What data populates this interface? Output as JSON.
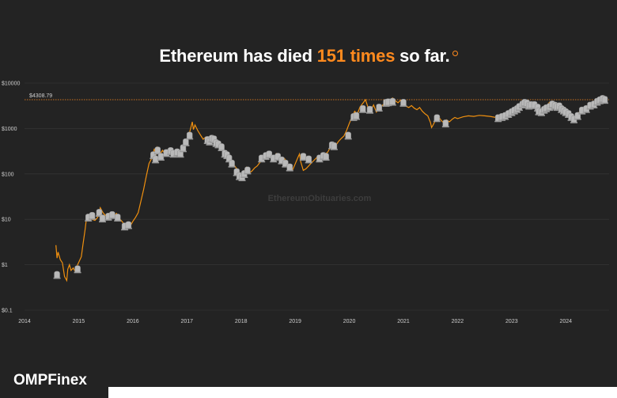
{
  "headline": {
    "prefix": "Ethereum has died ",
    "highlight": "151 times",
    "suffix": " so far.",
    "info_icon": "info-circle-icon"
  },
  "brand": {
    "name": "OMPFinex"
  },
  "watermark": "EthereumObituaries.com",
  "colors": {
    "background": "#232323",
    "accent": "#ff8a1e",
    "line": "#f0900f",
    "gridline": "#3a3a3a",
    "tombstone": "#b9b9b9"
  },
  "chart_data": {
    "type": "line",
    "title": "Ethereum has died 151 times so far.",
    "y_scale": "log",
    "y_ticks": [
      {
        "value": 10000,
        "label": "$10000"
      },
      {
        "value": 1000,
        "label": "$1000"
      },
      {
        "value": 100,
        "label": "$100"
      },
      {
        "value": 10,
        "label": "$10"
      },
      {
        "value": 1,
        "label": "$1"
      },
      {
        "value": 0.1,
        "label": "$0.1"
      }
    ],
    "x_ticks": [
      "2014",
      "2015",
      "2016",
      "2017",
      "2018",
      "2019",
      "2020",
      "2021",
      "2022",
      "2023",
      "2024"
    ],
    "xlim": [
      2014.0,
      2024.8
    ],
    "ylim": [
      0.1,
      10000
    ],
    "reference_line": {
      "value": 4308.79,
      "label": "$4308.79"
    },
    "series": [
      {
        "points": [
          [
            2014.58,
            2.7
          ],
          [
            2014.6,
            1.4
          ],
          [
            2014.62,
            1.9
          ],
          [
            2014.66,
            1.3
          ],
          [
            2014.7,
            1.1
          ],
          [
            2014.74,
            0.55
          ],
          [
            2014.78,
            0.45
          ],
          [
            2014.8,
            0.8
          ],
          [
            2014.83,
            1.0
          ],
          [
            2014.86,
            0.75
          ],
          [
            2014.9,
            0.85
          ],
          [
            2014.94,
            0.7
          ],
          [
            2014.98,
            1.0
          ],
          [
            2015.05,
            1.5
          ],
          [
            2015.08,
            2.8
          ],
          [
            2015.12,
            6.0
          ],
          [
            2015.15,
            12.0
          ],
          [
            2015.2,
            11.0
          ],
          [
            2015.25,
            10.0
          ],
          [
            2015.3,
            9.5
          ],
          [
            2015.35,
            11.0
          ],
          [
            2015.4,
            18.0
          ],
          [
            2015.45,
            14.0
          ],
          [
            2015.5,
            12.0
          ],
          [
            2015.55,
            11.5
          ],
          [
            2015.6,
            10.5
          ],
          [
            2015.65,
            12.0
          ],
          [
            2015.7,
            13.5
          ],
          [
            2015.75,
            10.5
          ],
          [
            2015.8,
            9.0
          ],
          [
            2015.85,
            7.5
          ],
          [
            2015.9,
            6.8
          ],
          [
            2015.95,
            7.0
          ],
          [
            2016.0,
            9.0
          ],
          [
            2016.05,
            11.0
          ],
          [
            2016.1,
            14.0
          ],
          [
            2016.15,
            25.0
          ],
          [
            2016.2,
            45.0
          ],
          [
            2016.25,
            90.0
          ],
          [
            2016.3,
            170.0
          ],
          [
            2016.35,
            220.0
          ],
          [
            2016.4,
            360.0
          ],
          [
            2016.42,
            230.0
          ],
          [
            2016.45,
            380.0
          ],
          [
            2016.5,
            270.0
          ],
          [
            2016.55,
            330.0
          ],
          [
            2016.6,
            260.0
          ],
          [
            2016.65,
            300.0
          ],
          [
            2016.7,
            340.0
          ],
          [
            2016.75,
            270.0
          ],
          [
            2016.8,
            300.0
          ],
          [
            2016.85,
            240.0
          ],
          [
            2016.9,
            330.0
          ],
          [
            2016.95,
            430.0
          ],
          [
            2017.0,
            560.0
          ],
          [
            2017.05,
            820.0
          ],
          [
            2017.1,
            1400.0
          ],
          [
            2017.12,
            950.0
          ],
          [
            2017.15,
            1200.0
          ],
          [
            2017.2,
            900.0
          ],
          [
            2017.25,
            720.0
          ],
          [
            2017.3,
            580.0
          ],
          [
            2017.35,
            650.0
          ],
          [
            2017.4,
            620.0
          ],
          [
            2017.45,
            700.0
          ],
          [
            2017.5,
            560.0
          ],
          [
            2017.55,
            440.0
          ],
          [
            2017.6,
            460.0
          ],
          [
            2017.65,
            380.0
          ],
          [
            2017.7,
            300.0
          ],
          [
            2017.75,
            270.0
          ],
          [
            2017.8,
            230.0
          ],
          [
            2017.85,
            170.0
          ],
          [
            2017.9,
            140.0
          ],
          [
            2017.95,
            120.0
          ],
          [
            2018.0,
            90.0
          ],
          [
            2018.05,
            110.0
          ],
          [
            2018.1,
            140.0
          ],
          [
            2018.15,
            105.0
          ],
          [
            2018.2,
            115.0
          ],
          [
            2018.25,
            135.0
          ],
          [
            2018.3,
            150.0
          ],
          [
            2018.35,
            180.0
          ],
          [
            2018.4,
            220.0
          ],
          [
            2018.45,
            260.0
          ],
          [
            2018.5,
            300.0
          ],
          [
            2018.55,
            240.0
          ],
          [
            2018.6,
            220.0
          ],
          [
            2018.65,
            280.0
          ],
          [
            2018.7,
            250.0
          ],
          [
            2018.75,
            210.0
          ],
          [
            2018.8,
            220.0
          ],
          [
            2018.85,
            180.0
          ],
          [
            2018.9,
            140.0
          ],
          [
            2018.95,
            120.0
          ],
          [
            2019.0,
            165.0
          ],
          [
            2019.05,
            230.0
          ],
          [
            2019.08,
            275.0
          ],
          [
            2019.1,
            190.0
          ],
          [
            2019.15,
            120.0
          ],
          [
            2019.2,
            130.0
          ],
          [
            2019.25,
            150.0
          ],
          [
            2019.3,
            175.0
          ],
          [
            2019.35,
            200.0
          ],
          [
            2019.4,
            230.0
          ],
          [
            2019.45,
            210.0
          ],
          [
            2019.5,
            240.0
          ],
          [
            2019.55,
            270.0
          ],
          [
            2019.6,
            300.0
          ],
          [
            2019.65,
            380.0
          ],
          [
            2019.7,
            470.0
          ],
          [
            2019.75,
            420.0
          ],
          [
            2019.8,
            520.0
          ],
          [
            2019.85,
            600.0
          ],
          [
            2019.9,
            680.0
          ],
          [
            2019.95,
            900.0
          ],
          [
            2020.0,
            1300.0
          ],
          [
            2020.05,
            1800.0
          ],
          [
            2020.1,
            2400.0
          ],
          [
            2020.15,
            2100.0
          ],
          [
            2020.2,
            3000.0
          ],
          [
            2020.25,
            3600.0
          ],
          [
            2020.3,
            4300.0
          ],
          [
            2020.35,
            2800.0
          ],
          [
            2020.4,
            2500.0
          ],
          [
            2020.45,
            3300.0
          ],
          [
            2020.5,
            2300.0
          ],
          [
            2020.55,
            2700.0
          ],
          [
            2020.6,
            3100.0
          ],
          [
            2020.65,
            3600.0
          ],
          [
            2020.7,
            3800.0
          ],
          [
            2020.75,
            4200.0
          ],
          [
            2020.8,
            4700.0
          ],
          [
            2020.85,
            4100.0
          ],
          [
            2020.9,
            3700.0
          ],
          [
            2020.95,
            4200.0
          ],
          [
            2021.0,
            3500.0
          ],
          [
            2021.05,
            3100.0
          ],
          [
            2021.1,
            2900.0
          ],
          [
            2021.15,
            3200.0
          ],
          [
            2021.2,
            2800.0
          ],
          [
            2021.25,
            2600.0
          ],
          [
            2021.3,
            2900.0
          ],
          [
            2021.35,
            2400.0
          ],
          [
            2021.4,
            2100.0
          ],
          [
            2021.45,
            1900.0
          ],
          [
            2021.5,
            1350.0
          ],
          [
            2021.52,
            1050.0
          ],
          [
            2021.55,
            1200.0
          ],
          [
            2021.6,
            1600.0
          ],
          [
            2021.65,
            1800.0
          ],
          [
            2021.7,
            1500.0
          ],
          [
            2021.75,
            1300.0
          ],
          [
            2021.8,
            1550.0
          ],
          [
            2021.85,
            1400.0
          ],
          [
            2021.9,
            1600.0
          ],
          [
            2021.95,
            1750.0
          ],
          [
            2022.0,
            1650.0
          ],
          [
            2022.1,
            1800.0
          ],
          [
            2022.2,
            1900.0
          ],
          [
            2022.3,
            1850.0
          ],
          [
            2022.4,
            1950.0
          ],
          [
            2022.5,
            1900.0
          ],
          [
            2022.6,
            1850.0
          ],
          [
            2022.7,
            1750.0
          ],
          [
            2022.8,
            1800.0
          ],
          [
            2022.9,
            2000.0
          ],
          [
            2023.0,
            2200.0
          ],
          [
            2023.05,
            2500.0
          ],
          [
            2023.1,
            2900.0
          ],
          [
            2023.15,
            3400.0
          ],
          [
            2023.2,
            3900.0
          ],
          [
            2023.25,
            3600.0
          ],
          [
            2023.3,
            3100.0
          ],
          [
            2023.35,
            3300.0
          ],
          [
            2023.4,
            3500.0
          ],
          [
            2023.45,
            3000.0
          ],
          [
            2023.5,
            2600.0
          ],
          [
            2023.55,
            2400.0
          ],
          [
            2023.6,
            2700.0
          ],
          [
            2023.65,
            3200.0
          ],
          [
            2023.7,
            3800.0
          ],
          [
            2023.75,
            3400.0
          ],
          [
            2023.8,
            3000.0
          ],
          [
            2023.85,
            3400.0
          ],
          [
            2023.9,
            3100.0
          ],
          [
            2023.95,
            2600.0
          ],
          [
            2024.0,
            2400.0
          ],
          [
            2024.05,
            2000.0
          ],
          [
            2024.1,
            1700.0
          ],
          [
            2024.15,
            1550.0
          ],
          [
            2024.2,
            1800.0
          ],
          [
            2024.25,
            2300.0
          ],
          [
            2024.3,
            2700.0
          ],
          [
            2024.35,
            2600.0
          ],
          [
            2024.4,
            3000.0
          ],
          [
            2024.45,
            3600.0
          ],
          [
            2024.5,
            3300.0
          ],
          [
            2024.55,
            3900.0
          ],
          [
            2024.6,
            4300.0
          ],
          [
            2024.65,
            4600.0
          ],
          [
            2024.7,
            4400.0
          ],
          [
            2024.75,
            4200.0
          ]
        ]
      }
    ],
    "deaths": [
      [
        2014.6,
        0.6
      ],
      [
        2014.98,
        0.8
      ],
      [
        2015.18,
        11.0
      ],
      [
        2015.25,
        12.0
      ],
      [
        2015.38,
        14.0
      ],
      [
        2015.44,
        10.5
      ],
      [
        2015.55,
        11.5
      ],
      [
        2015.62,
        12.5
      ],
      [
        2015.72,
        11.0
      ],
      [
        2015.85,
        7.0
      ],
      [
        2015.92,
        7.5
      ],
      [
        2016.38,
        260.0
      ],
      [
        2016.42,
        210.0
      ],
      [
        2016.46,
        330.0
      ],
      [
        2016.52,
        240.0
      ],
      [
        2016.62,
        290.0
      ],
      [
        2016.7,
        320.0
      ],
      [
        2016.75,
        280.0
      ],
      [
        2016.82,
        300.0
      ],
      [
        2016.88,
        280.0
      ],
      [
        2016.93,
        370.0
      ],
      [
        2016.98,
        500.0
      ],
      [
        2017.05,
        700.0
      ],
      [
        2017.38,
        560.0
      ],
      [
        2017.42,
        520.0
      ],
      [
        2017.46,
        600.0
      ],
      [
        2017.5,
        580.0
      ],
      [
        2017.54,
        480.0
      ],
      [
        2017.58,
        450.0
      ],
      [
        2017.64,
        390.0
      ],
      [
        2017.7,
        280.0
      ],
      [
        2017.74,
        260.0
      ],
      [
        2017.78,
        220.0
      ],
      [
        2017.83,
        170.0
      ],
      [
        2017.92,
        110.0
      ],
      [
        2017.97,
        90.0
      ],
      [
        2018.02,
        85.0
      ],
      [
        2018.06,
        100.0
      ],
      [
        2018.12,
        120.0
      ],
      [
        2018.38,
        220.0
      ],
      [
        2018.46,
        250.0
      ],
      [
        2018.52,
        270.0
      ],
      [
        2018.6,
        220.0
      ],
      [
        2018.68,
        240.0
      ],
      [
        2018.75,
        200.0
      ],
      [
        2018.82,
        170.0
      ],
      [
        2018.9,
        140.0
      ],
      [
        2019.15,
        240.0
      ],
      [
        2019.25,
        210.0
      ],
      [
        2019.45,
        220.0
      ],
      [
        2019.52,
        250.0
      ],
      [
        2019.57,
        240.0
      ],
      [
        2019.68,
        430.0
      ],
      [
        2019.72,
        410.0
      ],
      [
        2019.98,
        700.0
      ],
      [
        2020.08,
        1800.0
      ],
      [
        2020.13,
        1900.0
      ],
      [
        2020.25,
        2700.0
      ],
      [
        2020.38,
        2600.0
      ],
      [
        2020.55,
        2900.0
      ],
      [
        2020.68,
        3700.0
      ],
      [
        2020.72,
        3800.0
      ],
      [
        2020.8,
        3900.0
      ],
      [
        2021.0,
        3700.0
      ],
      [
        2021.62,
        1700.0
      ],
      [
        2021.78,
        1300.0
      ],
      [
        2022.75,
        1700.0
      ],
      [
        2022.82,
        1800.0
      ],
      [
        2022.88,
        1900.0
      ],
      [
        2022.94,
        2100.0
      ],
      [
        2023.0,
        2300.0
      ],
      [
        2023.05,
        2500.0
      ],
      [
        2023.1,
        2700.0
      ],
      [
        2023.14,
        3000.0
      ],
      [
        2023.2,
        3400.0
      ],
      [
        2023.24,
        3700.0
      ],
      [
        2023.28,
        3600.0
      ],
      [
        2023.32,
        3200.0
      ],
      [
        2023.36,
        3300.0
      ],
      [
        2023.42,
        3300.0
      ],
      [
        2023.48,
        2900.0
      ],
      [
        2023.5,
        2400.0
      ],
      [
        2023.55,
        2300.0
      ],
      [
        2023.6,
        2600.0
      ],
      [
        2023.64,
        2800.0
      ],
      [
        2023.7,
        3000.0
      ],
      [
        2023.75,
        3400.0
      ],
      [
        2023.8,
        3200.0
      ],
      [
        2023.84,
        3000.0
      ],
      [
        2023.88,
        3100.0
      ],
      [
        2023.92,
        2700.0
      ],
      [
        2023.96,
        2500.0
      ],
      [
        2024.0,
        2300.0
      ],
      [
        2024.05,
        2100.0
      ],
      [
        2024.1,
        1800.0
      ],
      [
        2024.15,
        1600.0
      ],
      [
        2024.22,
        1900.0
      ],
      [
        2024.3,
        2500.0
      ],
      [
        2024.38,
        2700.0
      ],
      [
        2024.45,
        3200.0
      ],
      [
        2024.52,
        3400.0
      ],
      [
        2024.58,
        3900.0
      ],
      [
        2024.63,
        4200.0
      ],
      [
        2024.68,
        4500.0
      ],
      [
        2024.72,
        4300.0
      ]
    ]
  }
}
